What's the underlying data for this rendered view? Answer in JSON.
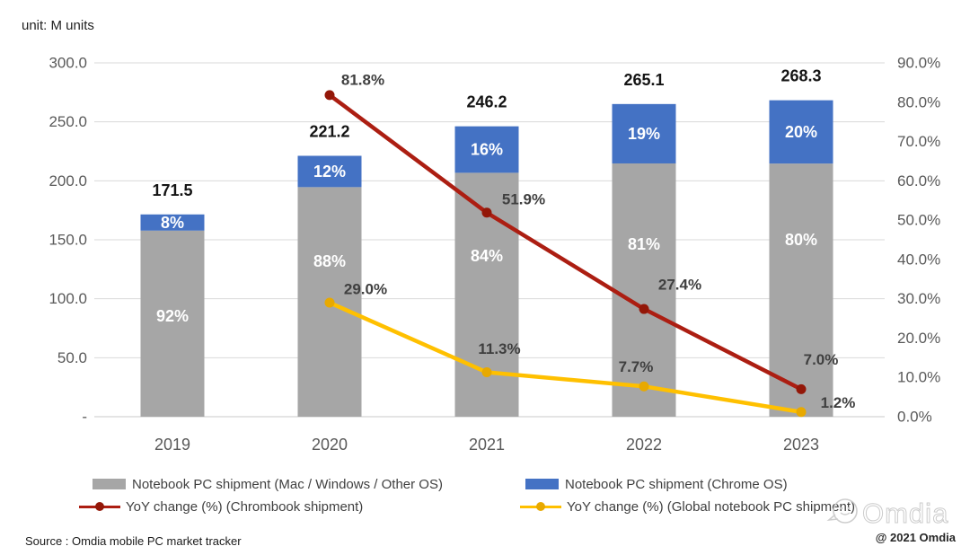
{
  "header": {
    "unit_label": "unit: M units"
  },
  "chart_data": {
    "type": "combo-stacked-bar-line",
    "categories": [
      "2019",
      "2020",
      "2021",
      "2022",
      "2023"
    ],
    "bar_totals": [
      171.5,
      221.2,
      246.2,
      265.1,
      268.3
    ],
    "bar_total_labels": [
      "171.5",
      "221.2",
      "246.2",
      "265.1",
      "268.3"
    ],
    "bar_series": [
      {
        "name": "Notebook PC shipment (Mac / Windows / Other OS)",
        "color": "#a6a6a6",
        "share_pct": [
          92,
          88,
          84,
          81,
          80
        ],
        "labels": [
          "92%",
          "88%",
          "84%",
          "81%",
          "80%"
        ]
      },
      {
        "name": "Notebook PC shipment (Chrome OS)",
        "color": "#4472c4",
        "share_pct": [
          8,
          12,
          16,
          19,
          20
        ],
        "labels": [
          "8%",
          "12%",
          "16%",
          "19%",
          "20%"
        ]
      }
    ],
    "line_series": [
      {
        "name": "YoY change (%) (Chrombook shipment)",
        "color": "#ac1e12",
        "marker_color": "#931708",
        "x": [
          "2020",
          "2021",
          "2022",
          "2023"
        ],
        "values": [
          81.8,
          51.9,
          27.4,
          7.0
        ],
        "labels": [
          "81.8%",
          "51.9%",
          "27.4%",
          "7.0%"
        ]
      },
      {
        "name": "YoY change (%) (Global notebook PC shipment)",
        "color": "#ffc000",
        "marker_color": "#e8a900",
        "x": [
          "2020",
          "2021",
          "2022",
          "2023"
        ],
        "values": [
          29.0,
          11.3,
          7.7,
          1.2
        ],
        "labels": [
          "29.0%",
          "11.3%",
          "7.7%",
          "1.2%"
        ]
      }
    ],
    "left_axis": {
      "min": 0,
      "max": 300,
      "ticks": [
        "300.0",
        "250.0",
        "200.0",
        "150.0",
        "100.0",
        "50.0",
        "-"
      ]
    },
    "right_axis": {
      "min": 0,
      "max": 90,
      "ticks": [
        "90.0%",
        "80.0%",
        "70.0%",
        "60.0%",
        "50.0%",
        "40.0%",
        "30.0%",
        "20.0%",
        "10.0%",
        "0.0%"
      ]
    },
    "grid": true,
    "legend_position": "bottom"
  },
  "legend": {
    "items": [
      {
        "label": "Notebook PC shipment (Mac / Windows / Other OS)",
        "swatch": "bar",
        "color": "#a6a6a6"
      },
      {
        "label": "Notebook PC shipment (Chrome OS)",
        "swatch": "bar",
        "color": "#4472c4"
      },
      {
        "label": "YoY change (%) (Chrombook shipment)",
        "swatch": "line",
        "color": "#ac1e12",
        "marker_color": "#931708"
      },
      {
        "label": "YoY change (%) (Global notebook PC shipment)",
        "swatch": "line",
        "color": "#ffc000",
        "marker_color": "#e8a900"
      }
    ]
  },
  "footer": {
    "source": "Source : Omdia mobile PC market tracker",
    "copyright": "@ 2021 Omdia",
    "watermark": "Omdia"
  }
}
